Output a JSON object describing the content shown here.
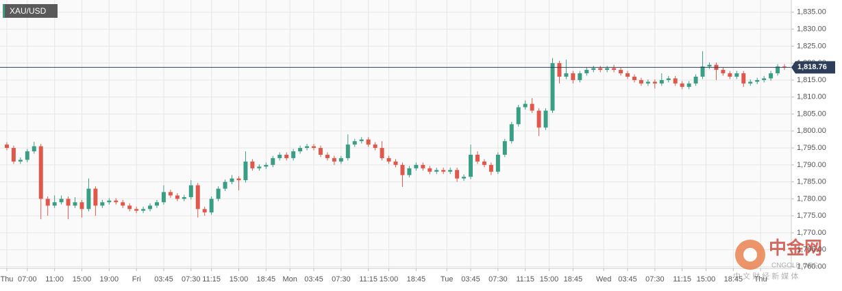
{
  "chart_data": {
    "type": "candlestick",
    "symbol": "XAU/USD",
    "up_color": "#3a9e85",
    "down_color": "#e0584b",
    "grid": true,
    "open": [
      1796,
      1795,
      1791,
      1791.5,
      1794,
      1795.5,
      1780,
      1778,
      1779,
      1780,
      1778,
      1779,
      1777,
      1783,
      1778,
      1779,
      1779.5,
      1779,
      1778,
      1777,
      1776.5,
      1777,
      1778,
      1779,
      1782,
      1781,
      1780,
      1780.5,
      1784,
      1777,
      1776,
      1780,
      1783,
      1785,
      1786,
      1785.5,
      1791,
      1789,
      1789.5,
      1790,
      1792,
      1793,
      1792,
      1794,
      1795,
      1795.5,
      1795,
      1793,
      1792,
      1791,
      1792,
      1796,
      1797,
      1797.5,
      1796,
      1795,
      1792,
      1791,
      1790,
      1787,
      1789,
      1790,
      1789,
      1788,
      1788.5,
      1788,
      1788.5,
      1786,
      1786.5,
      1793,
      1791,
      1790,
      1788,
      1793,
      1797,
      1802,
      1807,
      1808,
      1806,
      1801,
      1806,
      1820,
      1816,
      1817,
      1815,
      1817,
      1818,
      1818.5,
      1818,
      1818.5,
      1818,
      1817,
      1816,
      1815,
      1814,
      1814.5,
      1814,
      1815,
      1815.5,
      1814,
      1813,
      1814,
      1816,
      1819,
      1819.5,
      1818,
      1817,
      1816,
      1817,
      1814,
      1814.5,
      1815,
      1815.5,
      1817,
      1819
    ],
    "high": [
      1796.7,
      1795.7,
      1792.2,
      1794.7,
      1796.8,
      1796.2,
      1780.7,
      1781,
      1781,
      1780.7,
      1780.5,
      1779.7,
      1786,
      1783.7,
      1779.7,
      1780.2,
      1780.2,
      1779.7,
      1778.7,
      1777.7,
      1777.7,
      1778.7,
      1779.7,
      1784,
      1782.7,
      1781.7,
      1781.2,
      1785.5,
      1784.7,
      1777.7,
      1780.7,
      1783.7,
      1785.7,
      1787,
      1786.7,
      1794,
      1791.7,
      1790.2,
      1790.7,
      1792.7,
      1793.7,
      1793.7,
      1794.7,
      1795.7,
      1796.2,
      1796.2,
      1795.7,
      1793.7,
      1792.7,
      1792.7,
      1799,
      1797.7,
      1798.2,
      1798.2,
      1796.7,
      1797,
      1792.7,
      1791.7,
      1790.7,
      1789.7,
      1790.7,
      1790.7,
      1789.7,
      1789.2,
      1789.2,
      1789.2,
      1789.2,
      1787.2,
      1796,
      1794,
      1791.7,
      1790.7,
      1793.7,
      1797.7,
      1802.7,
      1807.7,
      1809,
      1809.7,
      1806.7,
      1806.7,
      1821.5,
      1820.7,
      1821,
      1817.7,
      1817.7,
      1818.7,
      1819.2,
      1819.2,
      1819.2,
      1819.5,
      1818.7,
      1817.7,
      1816.7,
      1815.7,
      1815.2,
      1815.2,
      1817,
      1816.2,
      1816.2,
      1814.7,
      1814.7,
      1816.7,
      1823.5,
      1820.2,
      1820.2,
      1818.7,
      1817.7,
      1817.7,
      1817.7,
      1815.2,
      1815.7,
      1816.2,
      1817.7,
      1819.7,
      1819.7
    ],
    "low": [
      1794.3,
      1790.3,
      1790.3,
      1790.8,
      1793.3,
      1774,
      1775,
      1777.3,
      1778.3,
      1774,
      1777.3,
      1774.5,
      1776.3,
      1775,
      1777.3,
      1778.3,
      1778.3,
      1777.3,
      1776.3,
      1775.8,
      1775.8,
      1776.3,
      1777.3,
      1778.3,
      1780.3,
      1779.3,
      1779.3,
      1779.8,
      1774.5,
      1775,
      1775.3,
      1779.3,
      1782.3,
      1784.3,
      1782.5,
      1784.8,
      1788.3,
      1788.3,
      1788.8,
      1789.3,
      1791.3,
      1791.3,
      1791.3,
      1793.3,
      1794.3,
      1794.3,
      1792.3,
      1791.3,
      1790,
      1790.3,
      1791.3,
      1795.3,
      1796.3,
      1795.3,
      1794.3,
      1791.3,
      1790.3,
      1789.3,
      1783.5,
      1786.3,
      1788.3,
      1788.3,
      1787.3,
      1787.3,
      1787.3,
      1787.3,
      1785,
      1785.3,
      1785.8,
      1790.3,
      1789.3,
      1787,
      1787.3,
      1792.3,
      1796.3,
      1801.3,
      1806.3,
      1805.3,
      1798.5,
      1800.3,
      1805.3,
      1814,
      1815.3,
      1814,
      1814.3,
      1816.3,
      1817.3,
      1817.3,
      1817.3,
      1817.3,
      1816.3,
      1815.3,
      1814.3,
      1813.3,
      1813.3,
      1812.5,
      1813.3,
      1814.3,
      1813.3,
      1812.3,
      1812.3,
      1813.3,
      1815.3,
      1818.3,
      1815,
      1816.3,
      1815.3,
      1815.3,
      1813,
      1813.3,
      1813.8,
      1814.3,
      1814.8,
      1816.3,
      1818
    ],
    "close": [
      1795,
      1791,
      1791.5,
      1794,
      1795.5,
      1780,
      1778,
      1779,
      1780,
      1778,
      1779,
      1777,
      1783,
      1778,
      1779,
      1779.5,
      1779,
      1778,
      1777,
      1776.5,
      1777,
      1778,
      1779,
      1782,
      1781,
      1780,
      1780.5,
      1784,
      1777,
      1776,
      1780,
      1783,
      1785,
      1786,
      1785.5,
      1791,
      1789,
      1789.5,
      1790,
      1792,
      1793,
      1792,
      1794,
      1795,
      1795.5,
      1795,
      1793,
      1792,
      1791,
      1792,
      1796,
      1797,
      1797.5,
      1796,
      1795,
      1792,
      1791,
      1790,
      1787,
      1789,
      1790,
      1789,
      1788,
      1788.5,
      1788,
      1788.5,
      1786,
      1786.5,
      1793,
      1791,
      1790,
      1788,
      1793,
      1797,
      1802,
      1807,
      1808,
      1806,
      1801,
      1806,
      1820,
      1816,
      1817,
      1815,
      1817,
      1818,
      1818.5,
      1818,
      1818.5,
      1818,
      1817,
      1816,
      1815,
      1814,
      1814.5,
      1814,
      1815,
      1815.5,
      1814,
      1813,
      1814,
      1816,
      1819,
      1819.5,
      1818,
      1817,
      1816,
      1817,
      1814,
      1814.5,
      1815,
      1815.5,
      1817,
      1819,
      1818.76
    ],
    "last_price": {
      "value": 1818.76,
      "label": "1,818.76"
    },
    "xlim": [
      -1,
      115
    ],
    "xticks": [
      {
        "value": 0,
        "label": "Thu"
      },
      {
        "value": 3,
        "label": "07:00"
      },
      {
        "value": 7,
        "label": "11:00"
      },
      {
        "value": 11,
        "label": "15:00"
      },
      {
        "value": 15,
        "label": "19:00"
      },
      {
        "value": 19,
        "label": "Fri"
      },
      {
        "value": 23,
        "label": "03:45"
      },
      {
        "value": 27,
        "label": "07:30"
      },
      {
        "value": 30,
        "label": "11:15"
      },
      {
        "value": 34,
        "label": "15:00"
      },
      {
        "value": 38,
        "label": "18:45"
      },
      {
        "value": 41.5,
        "label": "Mon"
      },
      {
        "value": 45,
        "label": "03:45"
      },
      {
        "value": 49,
        "label": "07:30"
      },
      {
        "value": 53,
        "label": "11:15"
      },
      {
        "value": 56,
        "label": "15:00"
      },
      {
        "value": 60,
        "label": "18:45"
      },
      {
        "value": 64.5,
        "label": "Tue"
      },
      {
        "value": 68,
        "label": "03:45"
      },
      {
        "value": 72,
        "label": "07:30"
      },
      {
        "value": 76,
        "label": "11:15"
      },
      {
        "value": 79.5,
        "label": "15:00"
      },
      {
        "value": 83,
        "label": "18:45"
      },
      {
        "value": 87.5,
        "label": "Wed"
      },
      {
        "value": 91,
        "label": "03:45"
      },
      {
        "value": 95,
        "label": "07:30"
      },
      {
        "value": 99,
        "label": "11:15"
      },
      {
        "value": 102.5,
        "label": "15:00"
      },
      {
        "value": 106.5,
        "label": "18:45"
      },
      {
        "value": 110.5,
        "label": "Thu"
      }
    ],
    "ylim": [
      1759.5,
      1838.6
    ],
    "yticks": [
      {
        "value": 1760,
        "label": "1,760.00"
      },
      {
        "value": 1765,
        "label": "1,765.00"
      },
      {
        "value": 1770,
        "label": "1,770.00"
      },
      {
        "value": 1775,
        "label": "1,775.00"
      },
      {
        "value": 1780,
        "label": "1,780.00"
      },
      {
        "value": 1785,
        "label": "1,785.00"
      },
      {
        "value": 1790,
        "label": "1,790.00"
      },
      {
        "value": 1795,
        "label": "1,795.00"
      },
      {
        "value": 1800,
        "label": "1,800.00"
      },
      {
        "value": 1805,
        "label": "1,805.00"
      },
      {
        "value": 1810,
        "label": "1,810.00"
      },
      {
        "value": 1815,
        "label": "1,815.00"
      },
      {
        "value": 1820,
        "label": "1,820.00"
      },
      {
        "value": 1825,
        "label": "1,825.00"
      },
      {
        "value": 1830,
        "label": "1,830.00"
      },
      {
        "value": 1835,
        "label": "1,835.00"
      }
    ]
  },
  "watermark": {
    "brand": "中金网",
    "site": "CNGOLD.ORG",
    "slogan": "中 文 财 经 新 媒 体"
  }
}
